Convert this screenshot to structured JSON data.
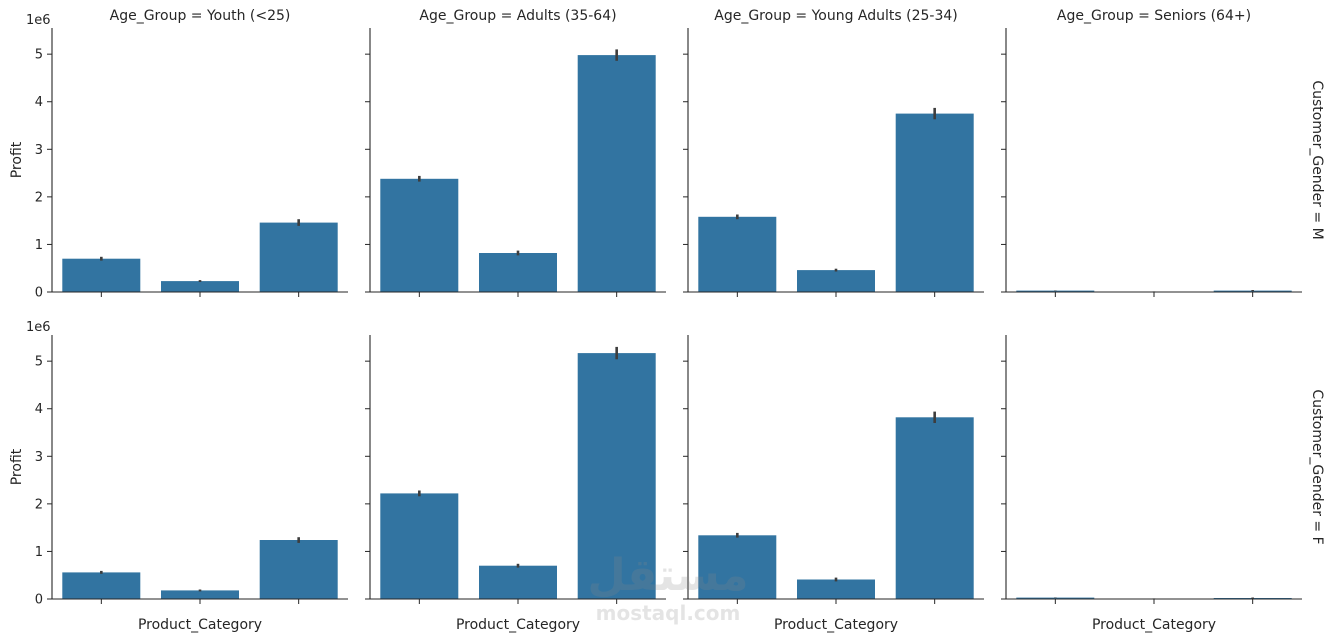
{
  "chart_data": {
    "type": "bar",
    "layout": "facet-grid",
    "col_variable": "Age_Group",
    "row_variable": "Customer_Gender",
    "col_labels": [
      "Age_Group = Youth (<25)",
      "Age_Group = Adults (35-64)",
      "Age_Group = Young Adults (25-34)",
      "Age_Group = Seniors (64+)"
    ],
    "row_labels": [
      "Customer_Gender = M",
      "Customer_Gender = F"
    ],
    "xlabel": "Product_Category",
    "ylabel": "Profit",
    "y_offset_label": "1e6",
    "yticks": [
      "0",
      "1",
      "2",
      "3",
      "4",
      "5"
    ],
    "ylim": [
      0,
      5.55
    ],
    "bar_color": "#3274a1",
    "errbar_color": "#3d3d3d",
    "panels": [
      [
        {
          "values": [
            0.7,
            0.23,
            1.46
          ],
          "errors": [
            0.04,
            0.02,
            0.07
          ]
        },
        {
          "values": [
            2.38,
            0.82,
            4.98
          ],
          "errors": [
            0.06,
            0.05,
            0.12
          ]
        },
        {
          "values": [
            1.58,
            0.46,
            3.75
          ],
          "errors": [
            0.05,
            0.03,
            0.12
          ]
        },
        {
          "values": [
            0.03,
            0.01,
            0.03
          ],
          "errors": [
            0.004,
            0.003,
            0.012
          ]
        }
      ],
      [
        {
          "values": [
            0.56,
            0.18,
            1.24
          ],
          "errors": [
            0.03,
            0.02,
            0.06
          ]
        },
        {
          "values": [
            2.22,
            0.7,
            5.17
          ],
          "errors": [
            0.06,
            0.04,
            0.13
          ]
        },
        {
          "values": [
            1.34,
            0.41,
            3.82
          ],
          "errors": [
            0.05,
            0.04,
            0.12
          ]
        },
        {
          "values": [
            0.03,
            0.01,
            0.02
          ],
          "errors": [
            0.004,
            0.003,
            0.012
          ]
        }
      ]
    ]
  },
  "watermark": {
    "arabic": "مستقل",
    "latin": "mostaql.com"
  }
}
